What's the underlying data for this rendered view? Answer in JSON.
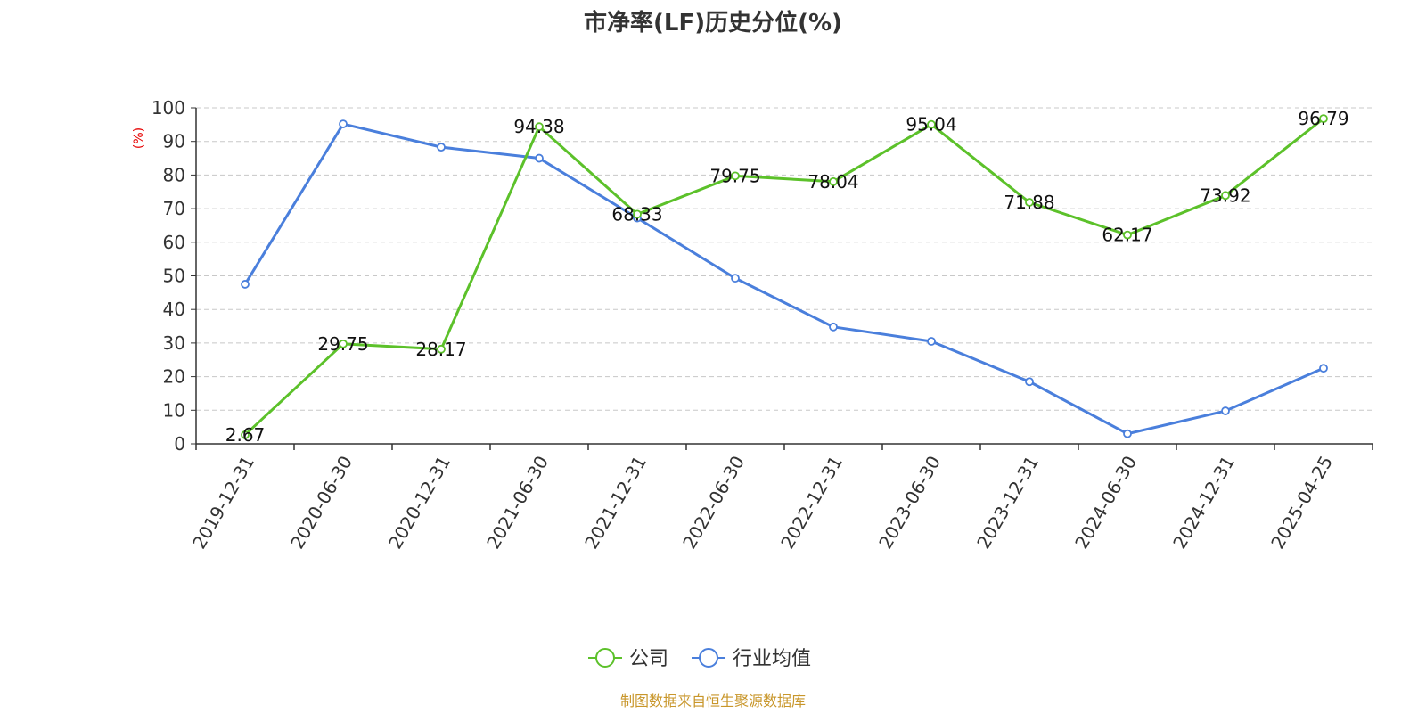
{
  "chart_data": {
    "type": "line",
    "title": "市净率(LF)历史分位(%)",
    "ylabel": "(%)",
    "xlabel": "",
    "ylim": [
      0,
      100
    ],
    "yticks": [
      0,
      10,
      20,
      30,
      40,
      50,
      60,
      70,
      80,
      90,
      100
    ],
    "grid": true,
    "legend_position": "bottom",
    "categories": [
      "2019-12-31",
      "2020-06-30",
      "2020-12-31",
      "2021-06-30",
      "2021-12-31",
      "2022-06-30",
      "2022-12-31",
      "2023-06-30",
      "2023-12-31",
      "2024-06-30",
      "2024-12-31",
      "2025-04-25"
    ],
    "series": [
      {
        "name": "公司",
        "color": "#5cc12a",
        "show_labels": true,
        "labels": [
          "2.67",
          "29.75",
          "28.17",
          "94.38",
          "68.33",
          "79.75",
          "78.04",
          "95.04",
          "71.88",
          "62.17",
          "73.92",
          "96.79"
        ],
        "values": [
          2.67,
          29.75,
          28.17,
          94.38,
          68.33,
          79.75,
          78.04,
          95.04,
          71.88,
          62.17,
          73.92,
          96.79
        ]
      },
      {
        "name": "行业均值",
        "color": "#4a7fdc",
        "show_labels": false,
        "values": [
          47.5,
          95.2,
          88.3,
          85.0,
          67.2,
          49.3,
          34.8,
          30.5,
          18.5,
          3.0,
          9.8,
          22.5
        ]
      }
    ],
    "source": "制图数据来自恒生聚源数据库"
  }
}
